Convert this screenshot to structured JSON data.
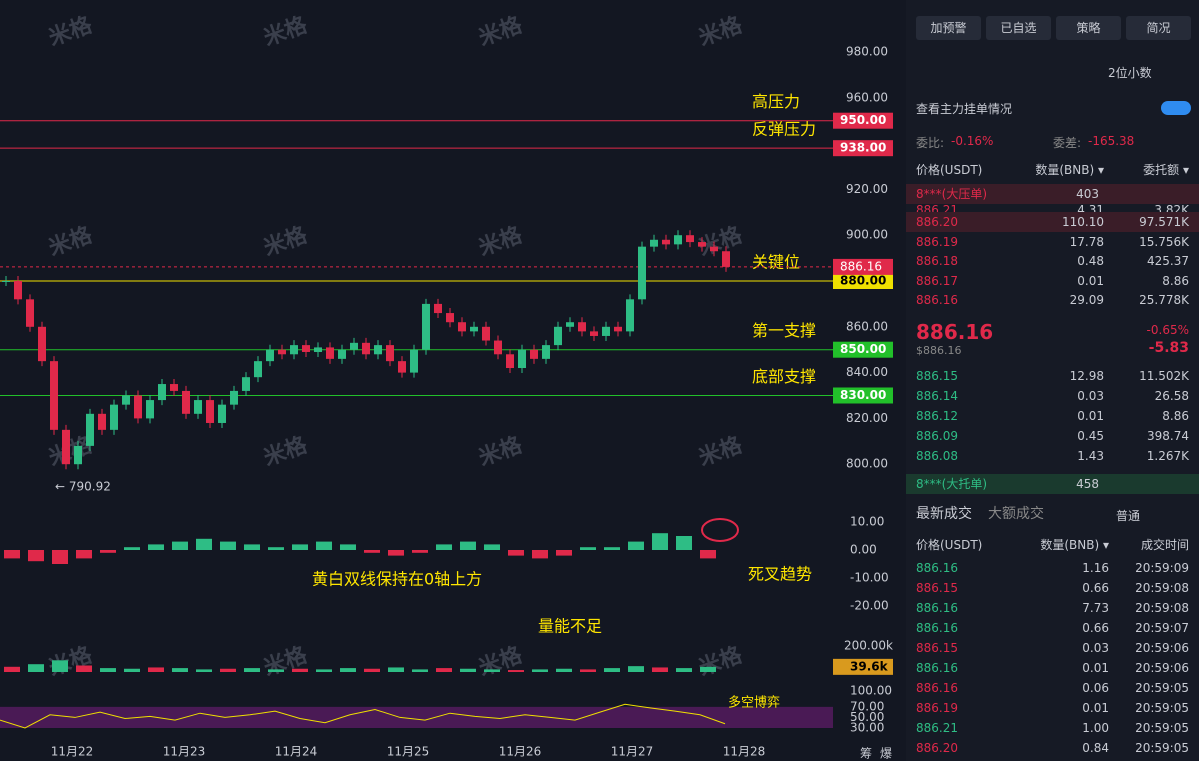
{
  "watermark": "米格",
  "chart": {
    "price_ticks": [
      {
        "value": 980,
        "label": "980.00"
      },
      {
        "value": 960,
        "label": "960.00"
      },
      {
        "value": 920,
        "label": "920.00"
      },
      {
        "value": 900,
        "label": "900.00"
      },
      {
        "value": 860,
        "label": "860.00"
      },
      {
        "value": 840,
        "label": "840.00"
      },
      {
        "value": 820,
        "label": "820.00"
      },
      {
        "value": 800,
        "label": "800.00"
      }
    ],
    "levels": [
      {
        "value": 950,
        "label": "950.00",
        "note": "高压力",
        "color": "#e0294a"
      },
      {
        "value": 938,
        "label": "938.00",
        "note": "反弹压力",
        "color": "#e0294a"
      },
      {
        "value": 880,
        "label": "880.00",
        "note": "关键位",
        "color": "#f0e000"
      },
      {
        "value": 850,
        "label": "850.00",
        "note": "第一支撑",
        "color": "#22c02a"
      },
      {
        "value": 830,
        "label": "830.00",
        "note": "底部支撑",
        "color": "#22c02a"
      }
    ],
    "last_price": {
      "value": 886.16,
      "label": "886.16"
    },
    "low_label": {
      "value": 790.92,
      "label": "← 790.92"
    },
    "closes": [
      880,
      872,
      860,
      845,
      815,
      800,
      808,
      822,
      815,
      826,
      830,
      820,
      828,
      835,
      832,
      822,
      828,
      818,
      826,
      832,
      838,
      845,
      850,
      848,
      852,
      849,
      851,
      846,
      850,
      853,
      848,
      852,
      845,
      840,
      850,
      870,
      866,
      862,
      858,
      860,
      854,
      848,
      842,
      850,
      846,
      852,
      860,
      862,
      858,
      856,
      860,
      858,
      872,
      895,
      898,
      896,
      900,
      897,
      895,
      893,
      886.16
    ],
    "macd_ticks": [
      {
        "value": 10,
        "label": "10.00"
      },
      {
        "value": 0,
        "label": "0.00"
      },
      {
        "value": -10,
        "label": "-10.00"
      },
      {
        "value": -20,
        "label": "-20.00"
      }
    ],
    "macd_hist": [
      -3,
      -4,
      -5,
      -3,
      -1,
      1,
      2,
      3,
      4,
      3,
      2,
      1,
      2,
      3,
      2,
      -1,
      -2,
      -1,
      2,
      3,
      2,
      -2,
      -3,
      -2,
      1,
      1,
      3,
      6,
      5,
      -3
    ],
    "macd_note": "黄白双线保持在0轴上方",
    "macd_note2": "死叉趋势",
    "volume_ticks": [
      {
        "value": 200000,
        "label": "200.00k"
      }
    ],
    "volume_last": {
      "value": 39600,
      "label": "39.6k"
    },
    "volumes": [
      40000,
      60000,
      90000,
      50000,
      30000,
      25000,
      35000,
      30000,
      20000,
      25000,
      30000,
      20000,
      25000,
      20000,
      30000,
      25000,
      35000,
      20000,
      30000,
      25000,
      20000,
      15000,
      20000,
      25000,
      20000,
      30000,
      45000,
      35000,
      30000,
      39600
    ],
    "volume_note": "量能不足",
    "rsi_ticks": [
      {
        "value": 100,
        "label": "100.00"
      },
      {
        "value": 70,
        "label": "70.00"
      },
      {
        "value": 50,
        "label": "50.00"
      },
      {
        "value": 30,
        "label": "30.00"
      }
    ],
    "rsi": [
      45,
      30,
      55,
      50,
      60,
      48,
      52,
      45,
      58,
      50,
      55,
      62,
      48,
      40,
      55,
      65,
      50,
      45,
      58,
      52,
      48,
      55,
      50,
      45,
      60,
      75,
      68,
      62,
      55,
      38
    ],
    "rsi_note": "多空博弈",
    "dates": [
      "11月22",
      "11月23",
      "11月24",
      "11月25",
      "11月26",
      "11月27",
      "11月28"
    ],
    "corner": [
      "筹",
      "爆"
    ]
  },
  "panel": {
    "buttons": [
      "加预警",
      "已自选",
      "策略",
      "简况"
    ],
    "decimals": "2位小数",
    "main_orders": "查看主力挂单情况",
    "ratio_label": "委比:",
    "ratio": "-0.16%",
    "diff_label": "委差:",
    "diff": "-165.38",
    "book_header": [
      "价格(USDT)",
      "数量(BNB) ▾",
      "委托额 ▾"
    ],
    "ask_banner": [
      "8***(大压单)",
      "403"
    ],
    "asks": [
      [
        "886.21",
        "4.31",
        "3.82K"
      ],
      [
        "886.20",
        "110.10",
        "97.571K"
      ],
      [
        "886.19",
        "17.78",
        "15.756K"
      ],
      [
        "886.18",
        "0.48",
        "425.37"
      ],
      [
        "886.17",
        "0.01",
        "8.86"
      ],
      [
        "886.16",
        "29.09",
        "25.778K"
      ]
    ],
    "price": "886.16",
    "price_usd": "$886.16",
    "change_pct": "-0.65%",
    "change": "-5.83",
    "bids": [
      [
        "886.15",
        "12.98",
        "11.502K"
      ],
      [
        "886.14",
        "0.03",
        "26.58"
      ],
      [
        "886.12",
        "0.01",
        "8.86"
      ],
      [
        "886.09",
        "0.45",
        "398.74"
      ],
      [
        "886.08",
        "1.43",
        "1.267K"
      ]
    ],
    "bid_banner": [
      "8***(大托单)",
      "458"
    ],
    "tabs": [
      "最新成交",
      "大额成交"
    ],
    "normal": "普通",
    "trade_header": [
      "价格(USDT)",
      "数量(BNB) ▾",
      "成交时间"
    ],
    "trades": [
      [
        "886.16",
        "1.16",
        "20:59:09",
        "g"
      ],
      [
        "886.15",
        "0.66",
        "20:59:08",
        "r"
      ],
      [
        "886.16",
        "7.73",
        "20:59:08",
        "g"
      ],
      [
        "886.16",
        "0.66",
        "20:59:07",
        "g"
      ],
      [
        "886.15",
        "0.03",
        "20:59:06",
        "r"
      ],
      [
        "886.16",
        "0.01",
        "20:59:06",
        "g"
      ],
      [
        "886.16",
        "0.06",
        "20:59:05",
        "r"
      ],
      [
        "886.19",
        "0.01",
        "20:59:05",
        "r"
      ],
      [
        "886.21",
        "1.00",
        "20:59:05",
        "g"
      ],
      [
        "886.20",
        "0.84",
        "20:59:05",
        "r"
      ]
    ]
  }
}
